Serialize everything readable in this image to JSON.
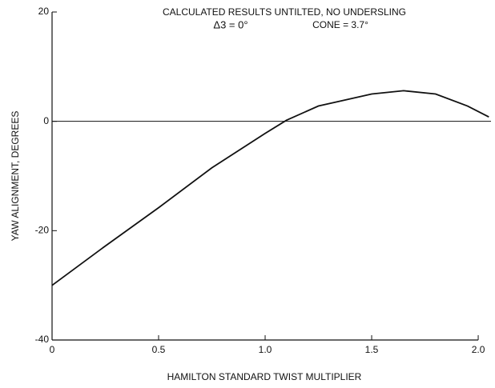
{
  "chart_data": {
    "type": "line",
    "title": "CALCULATED RESULTS UNTILTED, NO UNDERSLING",
    "annotations": [
      "Δ3 = 0°",
      "CONE = 3.7°"
    ],
    "x_label": "HAMILTON STANDARD TWIST MULTIPLIER",
    "y_label": "YAW ALIGNMENT, DEGREES",
    "x": [
      0,
      0.25,
      0.5,
      0.75,
      1.0,
      1.1,
      1.25,
      1.5,
      1.65,
      1.8,
      1.95,
      2.05
    ],
    "series": [
      {
        "color": "#111111",
        "values": [
          -30,
          -22.8,
          -15.8,
          -8.5,
          -2.2,
          0.2,
          2.8,
          5.0,
          5.6,
          5.0,
          2.8,
          0.8
        ]
      }
    ],
    "xlim": [
      0,
      2.06
    ],
    "xticks": [
      0,
      0.5,
      {
        "value": 1,
        "label": "1.0"
      },
      1.5,
      {
        "value": 2,
        "label": "2.0"
      }
    ],
    "ylim": [
      -40,
      20
    ],
    "yticks": [
      20,
      0,
      -20,
      -40
    ]
  }
}
